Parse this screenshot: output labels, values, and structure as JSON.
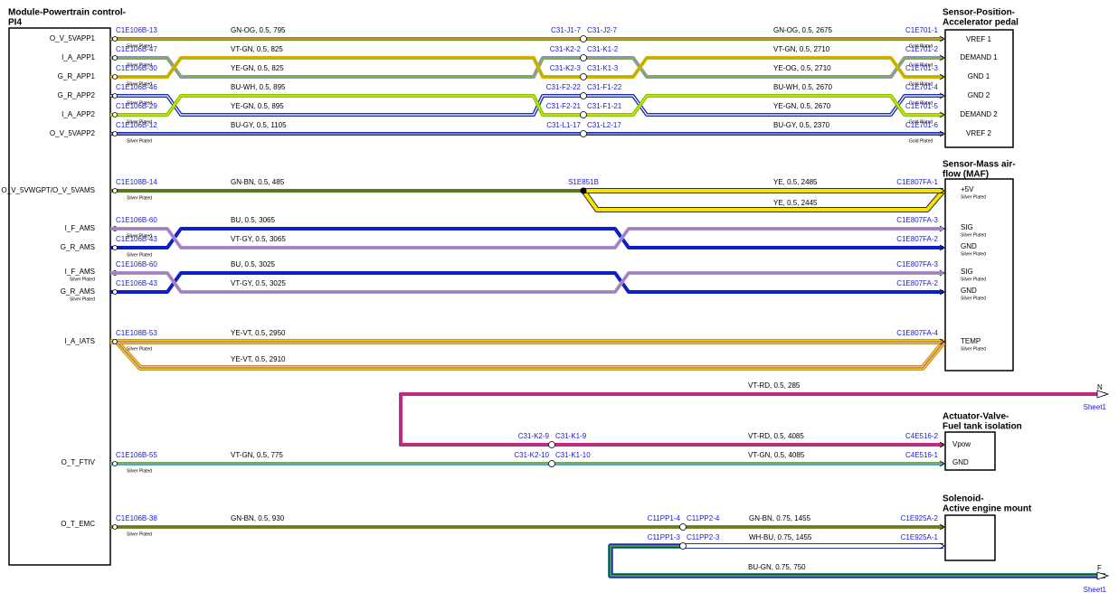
{
  "left_module": {
    "title_lines": [
      "Module-Powertrain control-",
      "PI4"
    ],
    "pins": [
      {
        "label": "O_V_5VAPP1"
      },
      {
        "label": "I_A_APP1"
      },
      {
        "label": "G_R_APP1"
      },
      {
        "label": "G_R_APP2"
      },
      {
        "label": "I_A_APP2"
      },
      {
        "label": "O_V_5VAPP2"
      },
      {
        "label": "O_V_5VWGPT/O_V_5VAMS"
      },
      {
        "label": "I_F_AMS"
      },
      {
        "label": "G_R_AMS"
      },
      {
        "label": "I_F_AMS",
        "note": "Silver Plated"
      },
      {
        "label": "G_R_AMS",
        "note": "Silver Plated"
      },
      {
        "label": "I_A_IATS"
      },
      {
        "label": "O_T_FTIV"
      },
      {
        "label": "O_T_EMC"
      }
    ]
  },
  "right_modules": [
    {
      "title_lines": [
        "Sensor-Position-",
        "Accelerator pedal"
      ],
      "pins": [
        {
          "label": "VREF 1"
        },
        {
          "label": "DEMAND 1"
        },
        {
          "label": "GND 1"
        },
        {
          "label": "GND 2"
        },
        {
          "label": "DEMAND 2"
        },
        {
          "label": "VREF 2"
        }
      ]
    },
    {
      "title_lines": [
        "Sensor-Mass air-",
        "flow (MAF)"
      ],
      "pins": [
        {
          "label": "+5V",
          "note": "Silver Plated"
        },
        {
          "label": "SIG",
          "note": "Silver Plated"
        },
        {
          "label": "GND",
          "note": "Silver Plated"
        },
        {
          "label": "SIG",
          "note": "Silver Plated"
        },
        {
          "label": "GND",
          "note": "Silver Plated"
        },
        {
          "label": "TEMP",
          "note": "Silver Plated"
        }
      ]
    },
    {
      "title_lines": [
        "Actuator-Valve-",
        "Fuel tank isolation"
      ],
      "pins": [
        {
          "label": "Vpow"
        },
        {
          "label": "GND"
        }
      ]
    },
    {
      "title_lines": [
        "Solenoid-",
        "Active engine mount"
      ],
      "pins": []
    }
  ],
  "wires": [
    {
      "left": "C1E106B-13",
      "left_note": "Silver Plated",
      "spec": "GN-OG, 0.5, 795",
      "splice": [
        "C31-J1-7",
        "C31-J2-7"
      ],
      "spec2": "GN-OG, 0.5, 2675",
      "right": "C1E701-1",
      "right_note": "Gold Plated"
    },
    {
      "left": "C1E106B-47",
      "left_note": "Silver Plated",
      "spec": "VT-GN, 0.5, 825",
      "splice": [
        "C31-K2-2",
        "C31-K1-2"
      ],
      "spec2": "VT-GN, 0.5, 2710",
      "right": "C1E701-2",
      "right_note": "Gold Plated"
    },
    {
      "left": "C1E106B-30",
      "left_note": "Silver Plated",
      "spec": "YE-GN, 0.5, 825",
      "splice": [
        "C31-K2-3",
        "C31-K1-3"
      ],
      "spec2": "YE-OG, 0.5, 2710",
      "right": "C1E701-3",
      "right_note": "Gold Plated"
    },
    {
      "left": "C1E106B-46",
      "left_note": "Silver Plated",
      "spec": "BU-WH, 0.5, 895",
      "splice": [
        "C31-F2-22",
        "C31-F1-22"
      ],
      "spec2": "BU-WH, 0.5, 2670",
      "right": "C1E701-4",
      "right_note": "Gold Plated"
    },
    {
      "left": "C1E106B-29",
      "left_note": "Silver Plated",
      "spec": "YE-GN, 0.5, 895",
      "splice": [
        "C31-F2-21",
        "C31-F1-21"
      ],
      "spec2": "YE-GN, 0.5, 2670",
      "right": "C1E701-5",
      "right_note": "Gold Plated"
    },
    {
      "left": "C1E106B-12",
      "left_note": "Silver Plated",
      "spec": "BU-GY, 0.5, 1105",
      "splice": [
        "C31-L1-17",
        "C31-L2-17"
      ],
      "spec2": "BU-GY, 0.5, 2370",
      "right": "C1E701-6",
      "right_note": "Gold Plated"
    },
    {
      "left": "C1E108B-14",
      "left_note": "Silver Plated",
      "spec": "GN-BN, 0.5, 485",
      "splice": [
        "S1E851B"
      ],
      "spec2": "YE, 0.5, 2485",
      "right": "C1E807FA-1",
      "branch_spec": "YE, 0.5, 2445"
    },
    {
      "left": "C1E106B-60",
      "left_note": "Silver Plated",
      "spec": "BU, 0.5, 3065",
      "right": "C1E807FA-3"
    },
    {
      "left": "C1E106B-43",
      "left_note": "Silver Plated",
      "spec": "VT-GY, 0.5, 3065",
      "right": "C1E807FA-2"
    },
    {
      "left": "C1E106B-60",
      "spec": "BU, 0.5, 3025",
      "right": "C1E807FA-3"
    },
    {
      "left": "C1E106B-43",
      "spec": "VT-GY, 0.5, 3025",
      "right": "C1E807FA-2"
    },
    {
      "left": "C1E108B-53",
      "left_note": "Silver Plated",
      "spec": "YE-VT, 0.5, 2950",
      "right": "C1E807FA-4",
      "branch_spec": "YE-VT, 0.5, 2910"
    },
    {
      "splice": [
        "C31-K2-9",
        "C31-K1-9"
      ],
      "spec2": "VT-RD, 0.5, 4085",
      "right": "C4E516-2",
      "branch_spec": "VT-RD, 0.5, 285",
      "offsheet": {
        "label": "N",
        "sheet": "Sheet1"
      }
    },
    {
      "left": "C1E106B-55",
      "left_note": "Silver Plated",
      "spec": "VT-GN, 0.5, 775",
      "splice": [
        "C31-K2-10",
        "C31-K1-10"
      ],
      "spec2": "VT-GN, 0.5, 4085",
      "right": "C4E516-1"
    },
    {
      "left": "C1E106B-38",
      "left_note": "Silver Plated",
      "spec": "GN-BN, 0.5, 930",
      "splice": [
        "C11PP1-4",
        "C11PP2-4"
      ],
      "spec2": "GN-BN, 0.75, 1455",
      "right": "C1E925A-2"
    },
    {
      "splice": [
        "C11PP1-3",
        "C11PP2-3"
      ],
      "spec2": "WH-BU, 0.75, 1455",
      "right": "C1E925A-1",
      "branch_spec": "BU-GN, 0.75, 750",
      "offsheet": {
        "label": "F",
        "sheet": "Sheet1"
      }
    }
  ]
}
